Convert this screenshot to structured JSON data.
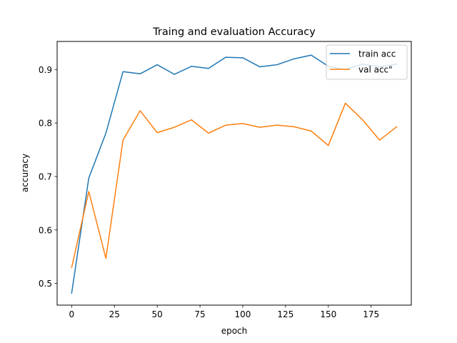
{
  "chart_data": {
    "type": "line",
    "title": "Traing and evaluation Accuracy",
    "xlabel": "epoch",
    "ylabel": "accuracy",
    "xlim": [
      -8.5,
      198.5
    ],
    "ylim": [
      0.4595,
      0.9525
    ],
    "x_ticks": [
      0,
      25,
      50,
      75,
      100,
      125,
      150,
      175
    ],
    "y_ticks": [
      0.5,
      0.6,
      0.7,
      0.8,
      0.9
    ],
    "grid": false,
    "legend_position": "top-right",
    "x": [
      0,
      10,
      20,
      30,
      40,
      50,
      60,
      70,
      80,
      90,
      100,
      110,
      120,
      130,
      140,
      150,
      160,
      170,
      180,
      190
    ],
    "series": [
      {
        "name": "train acc",
        "color": "#1f77b4",
        "values": [
          0.482,
          0.697,
          0.781,
          0.896,
          0.892,
          0.909,
          0.891,
          0.906,
          0.902,
          0.923,
          0.922,
          0.905,
          0.909,
          0.92,
          0.927,
          0.906,
          0.9,
          0.91,
          0.905,
          0.91
        ]
      },
      {
        "name": "val acc\"",
        "color": "#ff7f0e",
        "values": [
          0.53,
          0.672,
          0.547,
          0.768,
          0.823,
          0.782,
          0.792,
          0.806,
          0.781,
          0.796,
          0.799,
          0.792,
          0.796,
          0.793,
          0.785,
          0.758,
          0.837,
          0.806,
          0.768,
          0.793
        ]
      }
    ]
  }
}
